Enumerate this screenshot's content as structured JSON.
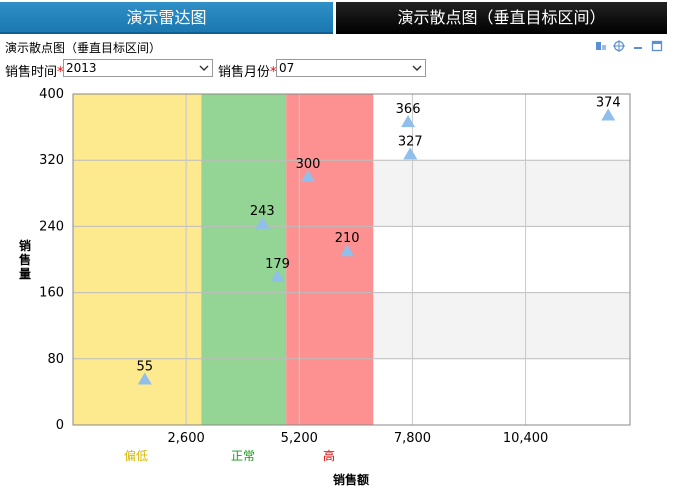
{
  "tabs": [
    {
      "label": "演示雷达图",
      "active": false
    },
    {
      "label": "演示散点图（垂直目标区间）",
      "active": true
    }
  ],
  "panel": {
    "title": "演示散点图（垂直目标区间）",
    "tool_icons": [
      "export-icon",
      "settings-icon",
      "minimize-icon",
      "maximize-icon"
    ]
  },
  "filters": {
    "year_label": "销售时间",
    "year_value": "2013",
    "month_label": "销售月份",
    "month_value": "07",
    "required_mark": "*"
  },
  "colors": {
    "tab_active": "#1b78b0",
    "band_low": "#fde98e",
    "band_normal": "#94d494",
    "band_high": "#fd9090",
    "marker": "#8fbfea",
    "label_low": "#d6b800",
    "label_normal": "#1b9a1b",
    "label_high": "#e00000"
  },
  "chart_data": {
    "type": "scatter",
    "xlabel": "销售额",
    "ylabel": "销售量",
    "xlim": [
      0,
      12800
    ],
    "ylim": [
      0,
      400
    ],
    "xticks": [
      2600,
      5200,
      7800,
      10400
    ],
    "xtick_labels": [
      "2,600",
      "5,200",
      "7,800",
      "10,400"
    ],
    "yticks": [
      0,
      80,
      160,
      240,
      320,
      400
    ],
    "ytick_labels": [
      "0",
      "80",
      "160",
      "240",
      "320",
      "400"
    ],
    "grid": true,
    "bands": [
      {
        "label": "偏低",
        "from": 0,
        "to": 2950,
        "color": "#fde98e"
      },
      {
        "label": "正常",
        "from": 2950,
        "to": 4900,
        "color": "#94d494"
      },
      {
        "label": "高",
        "from": 4900,
        "to": 6900,
        "color": "#fd9090"
      }
    ],
    "points": [
      {
        "x": 1650,
        "y": 55,
        "label": "55"
      },
      {
        "x": 4700,
        "y": 179,
        "label": "179"
      },
      {
        "x": 4350,
        "y": 243,
        "label": "243"
      },
      {
        "x": 5400,
        "y": 300,
        "label": "300"
      },
      {
        "x": 6300,
        "y": 210,
        "label": "210"
      },
      {
        "x": 7750,
        "y": 327,
        "label": "327"
      },
      {
        "x": 7700,
        "y": 366,
        "label": "366"
      },
      {
        "x": 12300,
        "y": 374,
        "label": "374"
      }
    ]
  }
}
